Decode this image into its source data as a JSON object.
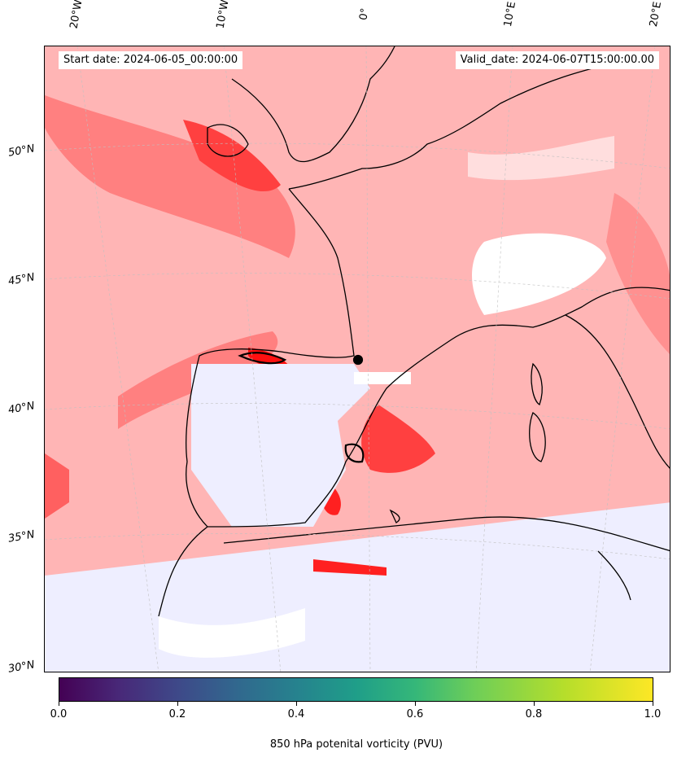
{
  "map": {
    "start_date": "Start date: 2024-06-05_00:00:00",
    "valid_date": "Valid_date: 2024-06-07T15:00:00.00",
    "longitude_labels": [
      "20°W",
      "10°W",
      "0°",
      "10°E",
      "20°E"
    ],
    "latitude_labels": [
      "50°N",
      "45°N",
      "40°N",
      "35°N",
      "30°N"
    ],
    "colors": {
      "ocean_base": "#ffb5b5",
      "strong_red": "#ff4040",
      "very_strong_red": "#ff0000",
      "light_pink": "#ffdede",
      "pale_blue": "#eeeeff",
      "blue_patch": "#b0b8ff",
      "white": "#ffffff",
      "coastline": "#000000"
    }
  },
  "colorbar": {
    "title": "850 hPa potenital vorticity (PVU)",
    "colormap": "viridis",
    "ticks": [
      "0.0",
      "0.2",
      "0.4",
      "0.6",
      "0.8",
      "1.0"
    ],
    "range": [
      0.0,
      1.0
    ]
  }
}
